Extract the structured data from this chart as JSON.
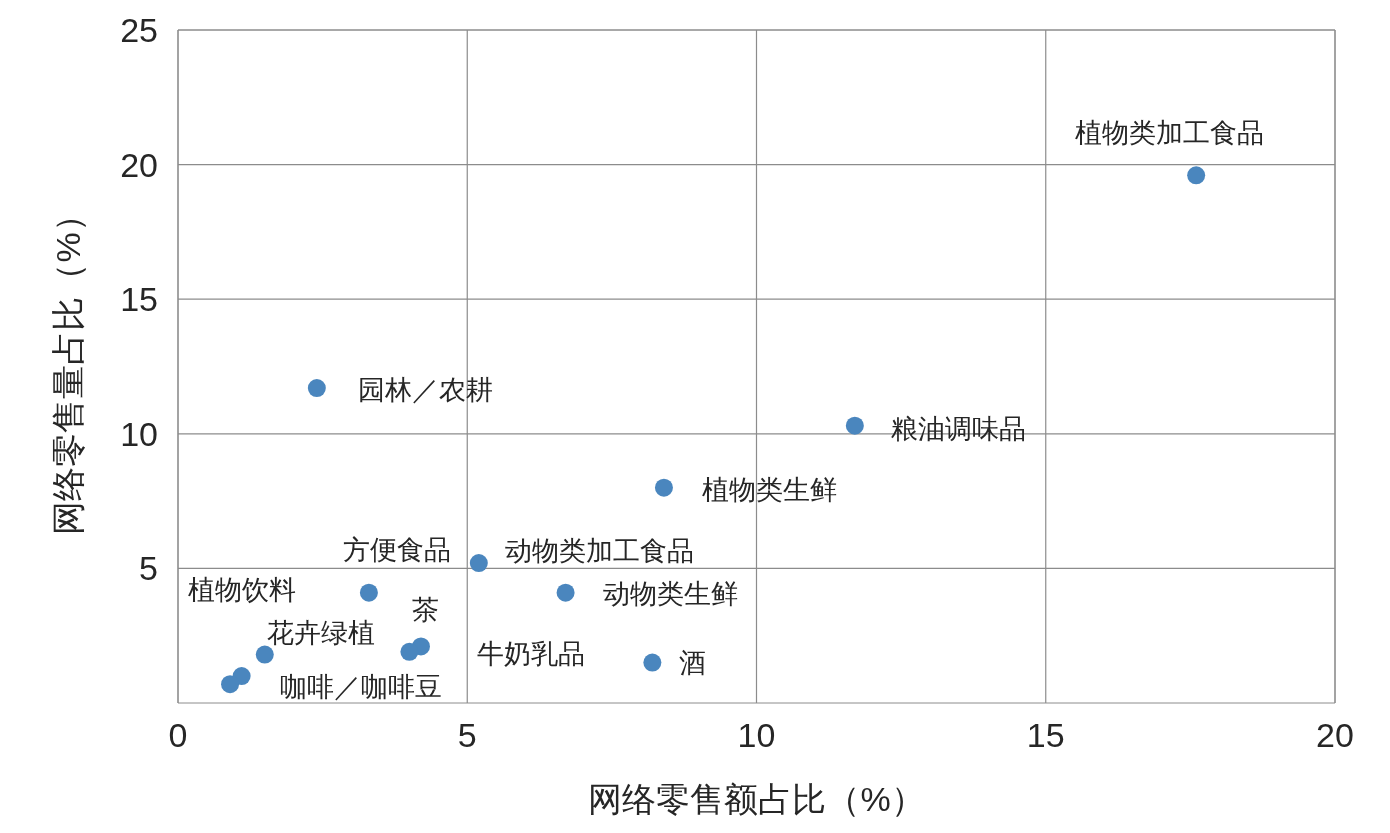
{
  "chart_data": {
    "type": "scatter",
    "xlabel": "网络零售额占比（%）",
    "ylabel": "网络零售量占比（%）",
    "x": [
      17.6,
      11.7,
      8.4,
      2.4,
      5.2,
      6.7,
      3.3,
      1.1,
      1.5,
      4.2,
      4.0,
      8.2,
      0.9
    ],
    "values": [
      19.6,
      10.3,
      8.0,
      11.7,
      5.2,
      4.1,
      4.1,
      1.0,
      1.8,
      2.1,
      1.9,
      1.5,
      0.7
    ],
    "color": "#4a86be",
    "marker": "circle",
    "xlim": [
      0,
      20
    ],
    "ylim": [
      0,
      25
    ],
    "xticks": [
      0,
      5,
      10,
      15,
      20
    ],
    "yticks": [
      5,
      10,
      15,
      20,
      25
    ],
    "grid": true,
    "annotations": [
      {
        "text": "植物类加工食品",
        "x": 17.6,
        "y": 19.6
      },
      {
        "text": "粮油调味品",
        "x": 11.7,
        "y": 10.3
      },
      {
        "text": "植物类生鲜",
        "x": 8.4,
        "y": 8.0
      },
      {
        "text": "园林／农耕",
        "x": 2.4,
        "y": 11.7
      },
      {
        "text": "动物类加工食品",
        "x": 5.2,
        "y": 5.2
      },
      {
        "text": "动物类生鲜",
        "x": 6.7,
        "y": 4.1
      },
      {
        "text": "方便食品",
        "x": 3.3,
        "y": 4.1
      },
      {
        "text": "植物饮料",
        "x": 1.1,
        "y": 1.0
      },
      {
        "text": "花卉绿植",
        "x": 1.5,
        "y": 1.8
      },
      {
        "text": "茶",
        "x": 4.2,
        "y": 2.1
      },
      {
        "text": "牛奶乳品",
        "x": 4.0,
        "y": 1.9
      },
      {
        "text": "酒",
        "x": 8.2,
        "y": 1.5
      },
      {
        "text": "咖啡／咖啡豆",
        "x": 0.9,
        "y": 0.7
      }
    ]
  }
}
